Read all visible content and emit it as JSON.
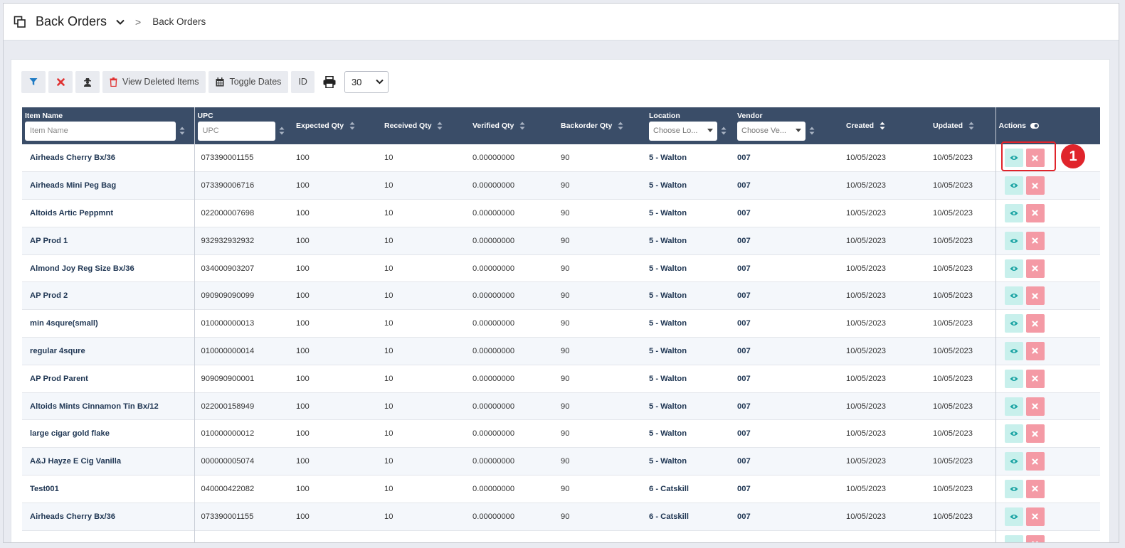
{
  "header": {
    "title": "Back Orders",
    "breadcrumb_separator": ">",
    "breadcrumb": "Back Orders"
  },
  "toolbar": {
    "view_deleted_label": "View Deleted Items",
    "toggle_dates_label": "Toggle Dates",
    "id_label": "ID",
    "page_size": "30"
  },
  "table": {
    "columns": {
      "item_name": "Item Name",
      "upc": "UPC",
      "expected_qty": "Expected Qty",
      "received_qty": "Received Qty",
      "verified_qty": "Verified Qty",
      "backorder_qty": "Backorder Qty",
      "location": "Location",
      "vendor": "Vendor",
      "created": "Created",
      "updated": "Updated",
      "actions": "Actions"
    },
    "filters": {
      "item_name_placeholder": "Item Name",
      "upc_placeholder": "UPC",
      "location_placeholder": "Choose Lo...",
      "vendor_placeholder": "Choose Ve..."
    },
    "rows": [
      {
        "name": "Airheads Cherry Bx/36",
        "upc": "073390001155",
        "expected": "100",
        "received": "10",
        "verified": "0.00000000",
        "backorder": "90",
        "location": "5 - Walton",
        "vendor": "007",
        "created": "10/05/2023",
        "updated": "10/05/2023"
      },
      {
        "name": "Airheads Mini Peg Bag",
        "upc": "073390006716",
        "expected": "100",
        "received": "10",
        "verified": "0.00000000",
        "backorder": "90",
        "location": "5 - Walton",
        "vendor": "007",
        "created": "10/05/2023",
        "updated": "10/05/2023"
      },
      {
        "name": "Altoids Artic Peppmnt",
        "upc": "022000007698",
        "expected": "100",
        "received": "10",
        "verified": "0.00000000",
        "backorder": "90",
        "location": "5 - Walton",
        "vendor": "007",
        "created": "10/05/2023",
        "updated": "10/05/2023"
      },
      {
        "name": "AP Prod 1",
        "upc": "932932932932",
        "expected": "100",
        "received": "10",
        "verified": "0.00000000",
        "backorder": "90",
        "location": "5 - Walton",
        "vendor": "007",
        "created": "10/05/2023",
        "updated": "10/05/2023"
      },
      {
        "name": "Almond Joy Reg Size Bx/36",
        "upc": "034000903207",
        "expected": "100",
        "received": "10",
        "verified": "0.00000000",
        "backorder": "90",
        "location": "5 - Walton",
        "vendor": "007",
        "created": "10/05/2023",
        "updated": "10/05/2023"
      },
      {
        "name": "AP Prod 2",
        "upc": "090909090099",
        "expected": "100",
        "received": "10",
        "verified": "0.00000000",
        "backorder": "90",
        "location": "5 - Walton",
        "vendor": "007",
        "created": "10/05/2023",
        "updated": "10/05/2023"
      },
      {
        "name": "min 4squre(small)",
        "upc": "010000000013",
        "expected": "100",
        "received": "10",
        "verified": "0.00000000",
        "backorder": "90",
        "location": "5 - Walton",
        "vendor": "007",
        "created": "10/05/2023",
        "updated": "10/05/2023"
      },
      {
        "name": "regular 4squre",
        "upc": "010000000014",
        "expected": "100",
        "received": "10",
        "verified": "0.00000000",
        "backorder": "90",
        "location": "5 - Walton",
        "vendor": "007",
        "created": "10/05/2023",
        "updated": "10/05/2023"
      },
      {
        "name": "AP Prod Parent",
        "upc": "909090900001",
        "expected": "100",
        "received": "10",
        "verified": "0.00000000",
        "backorder": "90",
        "location": "5 - Walton",
        "vendor": "007",
        "created": "10/05/2023",
        "updated": "10/05/2023"
      },
      {
        "name": "Altoids Mints Cinnamon Tin Bx/12",
        "upc": "022000158949",
        "expected": "100",
        "received": "10",
        "verified": "0.00000000",
        "backorder": "90",
        "location": "5 - Walton",
        "vendor": "007",
        "created": "10/05/2023",
        "updated": "10/05/2023"
      },
      {
        "name": "large cigar gold flake",
        "upc": "010000000012",
        "expected": "100",
        "received": "10",
        "verified": "0.00000000",
        "backorder": "90",
        "location": "5 - Walton",
        "vendor": "007",
        "created": "10/05/2023",
        "updated": "10/05/2023"
      },
      {
        "name": "A&J Hayze E Cig Vanilla",
        "upc": "000000005074",
        "expected": "100",
        "received": "10",
        "verified": "0.00000000",
        "backorder": "90",
        "location": "5 - Walton",
        "vendor": "007",
        "created": "10/05/2023",
        "updated": "10/05/2023"
      },
      {
        "name": "Test001",
        "upc": "040000422082",
        "expected": "100",
        "received": "10",
        "verified": "0.00000000",
        "backorder": "90",
        "location": "6 - Catskill",
        "vendor": "007",
        "created": "10/05/2023",
        "updated": "10/05/2023"
      },
      {
        "name": "Airheads Cherry Bx/36",
        "upc": "073390001155",
        "expected": "100",
        "received": "10",
        "verified": "0.00000000",
        "backorder": "90",
        "location": "6 - Catskill",
        "vendor": "007",
        "created": "10/05/2023",
        "updated": "10/05/2023"
      },
      {
        "name": "",
        "upc": "",
        "expected": "",
        "received": "",
        "verified": "",
        "backorder": "",
        "location": "",
        "vendor": "",
        "created": "",
        "updated": ""
      }
    ]
  },
  "annotation": {
    "badge": "1"
  },
  "colors": {
    "header_bg": "#3a4d68",
    "view_button": "#c8f0ec",
    "delete_button": "#f49aa5",
    "highlight": "#e0242b"
  },
  "icons": [
    "copy-icon",
    "chevron-down-icon",
    "filter-icon",
    "clear-icon",
    "user-secret-icon",
    "trash-icon",
    "calendar-icon",
    "printer-icon",
    "sort-icon",
    "toggle-icon",
    "eye-icon",
    "close-icon"
  ]
}
